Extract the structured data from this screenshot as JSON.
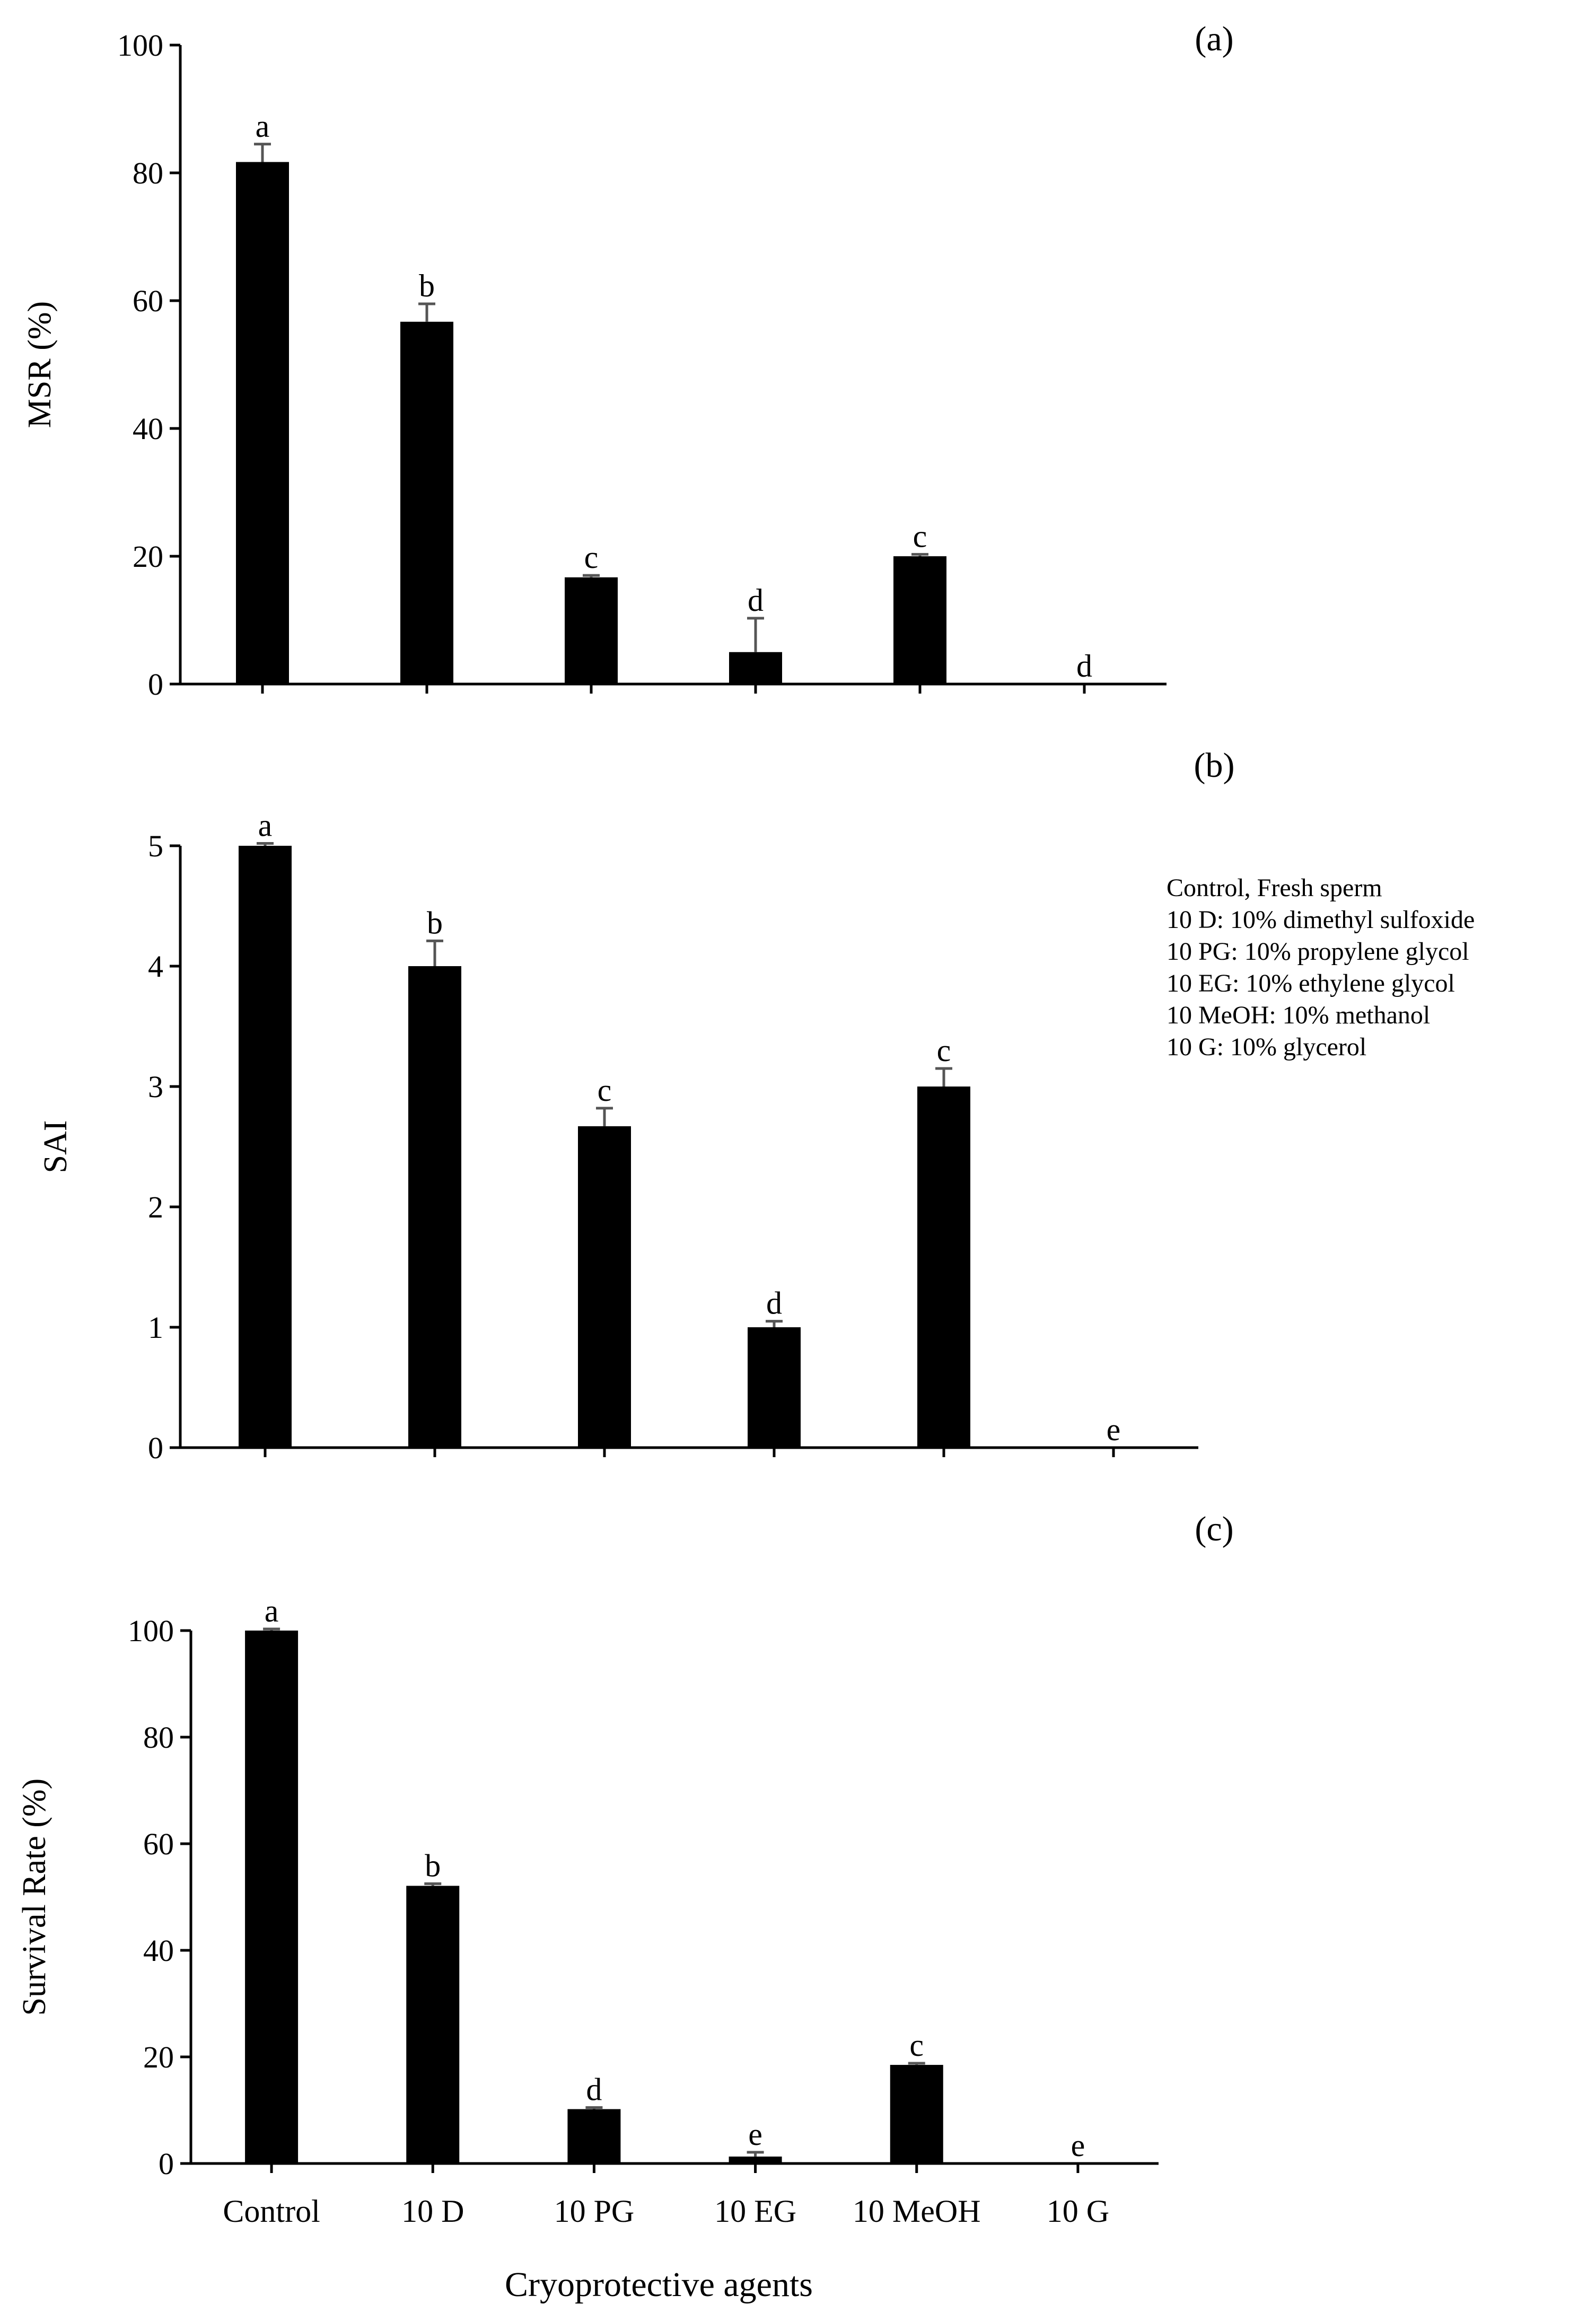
{
  "chart_data": [
    {
      "type": "bar",
      "panel": "(a)",
      "ylabel": "MSR (%)",
      "ylim": [
        0,
        100
      ],
      "yticks": [
        0,
        20,
        40,
        60,
        80,
        100
      ],
      "categories": [
        "Control",
        "10 D",
        "10 PG",
        "10 EG",
        "10 MeOH",
        "10 G"
      ],
      "values": [
        81.7,
        56.7,
        16.7,
        5.0,
        20.0,
        0
      ],
      "errors": [
        2.8,
        2.8,
        0.3,
        5.3,
        0.3,
        0
      ],
      "letters": [
        "a",
        "b",
        "c",
        "d",
        "c",
        "d"
      ]
    },
    {
      "type": "bar",
      "panel": "(b)",
      "ylabel": "SAI",
      "ylim": [
        0,
        5
      ],
      "yticks": [
        0,
        1,
        2,
        3,
        4,
        5
      ],
      "categories": [
        "Control",
        "10 D",
        "10 PG",
        "10 EG",
        "10 MeOH",
        "10 G"
      ],
      "values": [
        5.0,
        4.0,
        2.67,
        1.0,
        3.0,
        0
      ],
      "errors": [
        0.02,
        0.21,
        0.15,
        0.05,
        0.15,
        0
      ],
      "letters": [
        "a",
        "b",
        "c",
        "d",
        "c",
        "e"
      ]
    },
    {
      "type": "bar",
      "panel": "(c)",
      "ylabel": "Survival Rate (%)",
      "ylim": [
        0,
        100
      ],
      "yticks": [
        0,
        20,
        40,
        60,
        80,
        100
      ],
      "categories": [
        "Control",
        "10 D",
        "10 PG",
        "10 EG",
        "10 MeOH",
        "10 G"
      ],
      "values": [
        100,
        52.1,
        10.2,
        1.3,
        18.5,
        0
      ],
      "errors": [
        0.3,
        0.4,
        0.3,
        0.8,
        0.3,
        0
      ],
      "letters": [
        "a",
        "b",
        "d",
        "e",
        "c",
        "e"
      ],
      "xlabel": "Cryoprotective  agents"
    }
  ],
  "legend": [
    "Control, Fresh sperm",
    "10 D: 10% dimethyl sulfoxide",
    "10 PG: 10% propylene glycol",
    "10 EG: 10% ethylene glycol",
    "10 MeOH: 10% methanol",
    "10 G: 10% glycerol"
  ],
  "colors": {
    "bar": "#000000",
    "axis": "#000000",
    "errorbar": "#555555"
  }
}
